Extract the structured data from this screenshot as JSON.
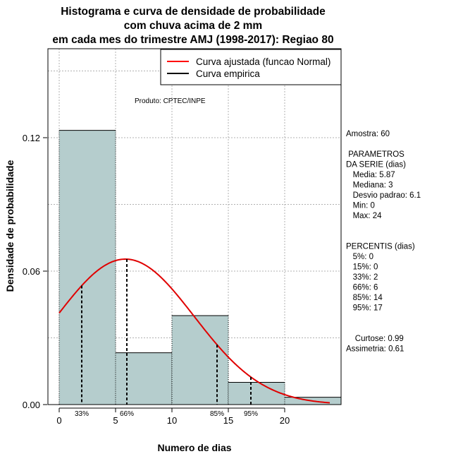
{
  "chart_data": {
    "type": "histogram",
    "title_lines": [
      "Histograma e curva de densidade de probabilidade",
      "com chuva acima de 2 mm",
      "em cada mes do trimestre AMJ (1998-2017): Regiao 80"
    ],
    "xlabel": "Numero de dias",
    "ylabel": "Densidade de probabilidade",
    "xlim": [
      -1,
      25
    ],
    "ylim": [
      0,
      0.16
    ],
    "x_ticks": [
      0,
      5,
      10,
      15,
      20
    ],
    "x_tick_labels": [
      "0",
      "5",
      "10",
      "15",
      "20"
    ],
    "y_ticks": [
      0.0,
      0.06,
      0.12
    ],
    "y_tick_labels": [
      "0.00",
      "0.06",
      "0.12"
    ],
    "grid_x": [
      0,
      5,
      10,
      15,
      20
    ],
    "grid_y": [
      0.03,
      0.06,
      0.09,
      0.12,
      0.15
    ],
    "bins": [
      {
        "x0": 0,
        "x1": 5,
        "density": 0.1233
      },
      {
        "x0": 5,
        "x1": 10,
        "density": 0.0233
      },
      {
        "x0": 10,
        "x1": 15,
        "density": 0.04
      },
      {
        "x0": 15,
        "x1": 20,
        "density": 0.01
      },
      {
        "x0": 20,
        "x1": 25,
        "density": 0.0033
      }
    ],
    "normal_curve": {
      "mean": 5.87,
      "sd": 6.1,
      "x_from": 0,
      "x_to": 24
    },
    "percentile_markers": [
      {
        "label": "33%",
        "x": 2
      },
      {
        "label": "66%",
        "x": 6
      },
      {
        "label": "85%",
        "x": 14
      },
      {
        "label": "95%",
        "x": 17
      }
    ],
    "legend": [
      {
        "label": "Curva ajustada (funcao Normal)",
        "color": "#ff0000"
      },
      {
        "label": "Curva empirica",
        "color": "#000000"
      }
    ],
    "annotation": "Produto: CPTEC/INPE",
    "colors": {
      "bar_fill": "#b5cdcd",
      "curve": "#e00000",
      "grid": "#b0b0b0"
    }
  },
  "stats_panel": {
    "lines": [
      "Amostra: 60",
      "",
      " PARAMETROS",
      "DA SERIE (dias)",
      "   Media: 5.87",
      "   Mediana: 3",
      "   Desvio padrao: 6.1",
      "   Min: 0",
      "   Max: 24",
      "",
      "",
      "PERCENTIS (dias)",
      "   5%: 0",
      "   15%: 0",
      "   33%: 2",
      "   66%: 6",
      "   85%: 14",
      "   95%: 17",
      "",
      "",
      "    Curtose: 0.99",
      "Assimetria: 0.61"
    ]
  }
}
